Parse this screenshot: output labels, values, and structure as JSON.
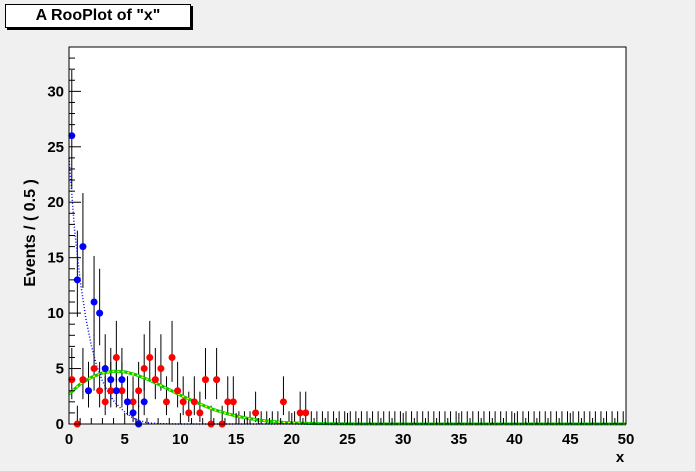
{
  "chart_data": {
    "type": "scatter",
    "title": "A RooPlot of \"x\"",
    "xlabel": "x",
    "ylabel": "Events / ( 0.5 )",
    "xlim": [
      0,
      50
    ],
    "ylim": [
      0,
      34
    ],
    "x_ticks": [
      0,
      5,
      10,
      15,
      20,
      25,
      30,
      35,
      40,
      45,
      50
    ],
    "y_ticks": [
      0,
      5,
      10,
      15,
      20,
      25,
      30
    ],
    "grid": false,
    "series": [
      {
        "color": "#ff0000",
        "kind": "points",
        "points": [
          [
            0.25,
            4
          ],
          [
            0.75,
            0
          ],
          [
            1.25,
            4
          ],
          [
            1.75,
            3
          ],
          [
            2.25,
            5
          ],
          [
            2.75,
            3
          ],
          [
            3.25,
            2
          ],
          [
            3.75,
            3
          ],
          [
            4.25,
            6
          ],
          [
            4.75,
            3
          ],
          [
            5.25,
            2
          ],
          [
            5.75,
            2
          ],
          [
            6.25,
            3
          ],
          [
            6.75,
            5
          ],
          [
            7.25,
            6
          ],
          [
            7.75,
            4
          ],
          [
            8.25,
            5
          ],
          [
            8.75,
            2
          ],
          [
            9.25,
            6
          ],
          [
            9.75,
            3
          ],
          [
            10.25,
            2
          ],
          [
            10.75,
            1
          ],
          [
            11.25,
            2
          ],
          [
            11.75,
            1
          ],
          [
            12.25,
            4
          ],
          [
            12.75,
            0
          ],
          [
            13.25,
            4
          ],
          [
            13.75,
            0
          ],
          [
            14.25,
            2
          ],
          [
            14.75,
            2
          ],
          [
            16.75,
            1
          ],
          [
            19.25,
            2
          ],
          [
            20.75,
            1
          ],
          [
            21.25,
            1
          ]
        ]
      },
      {
        "color": "#0000ff",
        "kind": "points",
        "points": [
          [
            0.25,
            26
          ],
          [
            0.75,
            13
          ],
          [
            1.25,
            16
          ],
          [
            1.75,
            3
          ],
          [
            2.25,
            11
          ],
          [
            2.75,
            10
          ],
          [
            3.25,
            5
          ],
          [
            3.75,
            4
          ],
          [
            4.25,
            3
          ],
          [
            4.75,
            4
          ],
          [
            5.25,
            2
          ],
          [
            5.75,
            1
          ],
          [
            6.25,
            0
          ],
          [
            6.75,
            2
          ]
        ]
      },
      {
        "color": "#00cc00",
        "kind": "curve",
        "x": [
          0,
          1,
          2,
          3,
          4,
          5,
          6,
          7,
          8,
          9,
          10,
          11,
          12,
          13,
          14,
          15,
          16,
          17,
          18,
          19,
          20,
          21,
          22,
          23,
          24,
          25,
          26,
          30,
          35,
          40,
          45,
          50
        ],
        "values": [
          2.7,
          3.6,
          4.2,
          4.6,
          4.75,
          4.7,
          4.45,
          4.05,
          3.6,
          3.1,
          2.6,
          2.15,
          1.7,
          1.3,
          0.98,
          0.72,
          0.52,
          0.36,
          0.24,
          0.16,
          0.1,
          0.06,
          0.04,
          0.02,
          0.01,
          0.005,
          0.0,
          0,
          0,
          0,
          0,
          0
        ]
      },
      {
        "color": "#ffff00",
        "kind": "curve",
        "x": [
          0,
          1,
          2,
          3,
          4,
          5,
          6,
          7,
          8,
          9,
          10,
          11,
          12,
          13,
          14,
          15,
          16,
          17,
          18,
          19,
          20,
          21,
          22,
          23,
          24,
          25,
          26,
          30,
          35,
          40,
          45,
          50
        ],
        "values": [
          2.7,
          3.6,
          4.2,
          4.6,
          4.75,
          4.7,
          4.45,
          4.05,
          3.6,
          3.1,
          2.6,
          2.15,
          1.7,
          1.3,
          0.98,
          0.72,
          0.52,
          0.36,
          0.24,
          0.16,
          0.1,
          0.06,
          0.04,
          0.02,
          0.01,
          0.005,
          0.0,
          0,
          0,
          0,
          0,
          0
        ]
      },
      {
        "color": "#0000ff",
        "kind": "curve",
        "x": [
          0,
          0.5,
          1,
          1.5,
          2,
          2.5,
          3,
          3.5,
          4,
          4.5,
          5,
          5.5,
          6,
          7,
          8,
          10,
          50
        ],
        "values": [
          24,
          17.5,
          13,
          9.6,
          7.1,
          5.2,
          3.9,
          2.9,
          2.1,
          1.55,
          1.1,
          0.7,
          0.4,
          0.12,
          0.03,
          0,
          0
        ]
      }
    ]
  }
}
